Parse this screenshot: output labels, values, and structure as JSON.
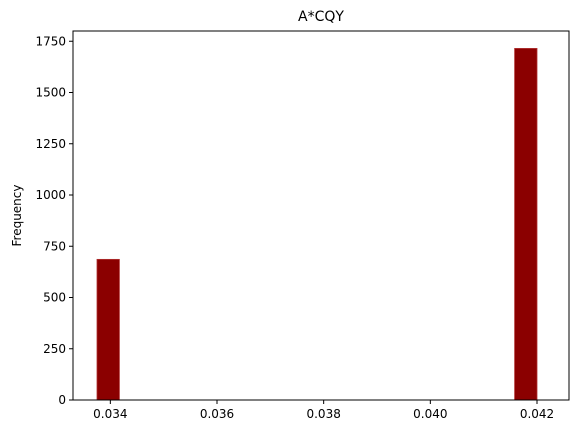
{
  "chart_data": {
    "type": "bar",
    "title": "A*CQY",
    "xlabel": "",
    "ylabel": "Frequency",
    "xlim": [
      0.0333,
      0.0426
    ],
    "ylim": [
      0,
      1800
    ],
    "xticks": [
      0.034,
      0.036,
      0.038,
      0.04,
      0.042
    ],
    "xtick_labels": [
      "0.034",
      "0.036",
      "0.038",
      "0.040",
      "0.042"
    ],
    "yticks": [
      0,
      250,
      500,
      750,
      1000,
      1250,
      1500,
      1750
    ],
    "ytick_labels": [
      "0",
      "250",
      "500",
      "750",
      "1000",
      "1250",
      "1500",
      "1750"
    ],
    "bins": [
      {
        "start": 0.03375,
        "end": 0.03417,
        "value": 686
      },
      {
        "start": 0.04158,
        "end": 0.042,
        "value": 1715
      }
    ],
    "bar_color": "#8b0000",
    "grid": false,
    "legend": "none"
  }
}
